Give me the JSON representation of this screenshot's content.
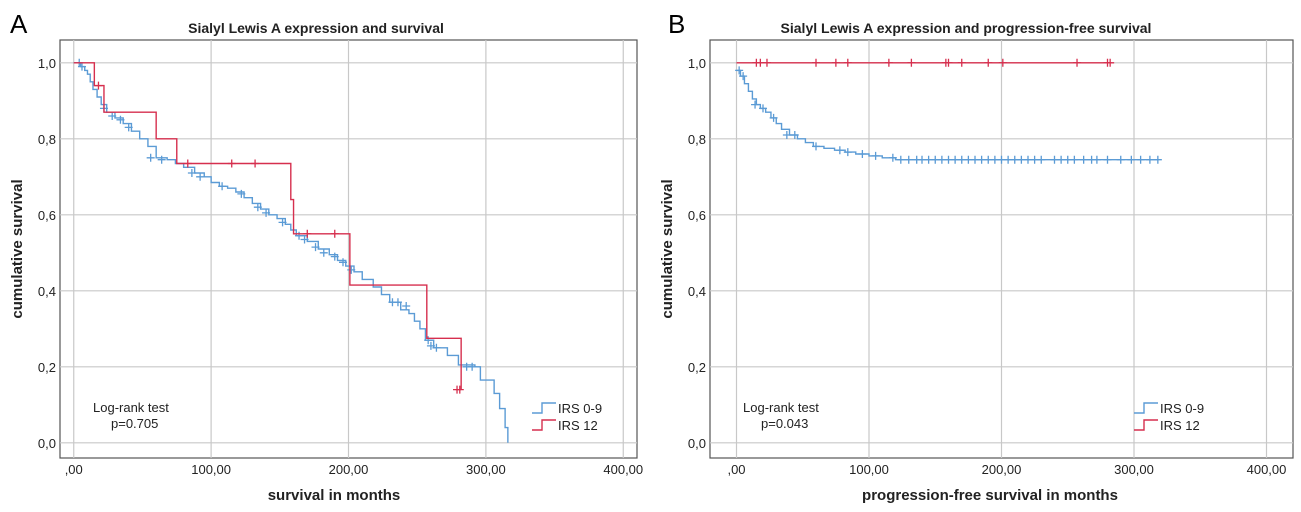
{
  "colors": {
    "irs_0_9": "#5b9bd5",
    "irs_12": "#d62f4e",
    "grid": "#c8c8c8"
  },
  "chart_data": [
    {
      "type": "line",
      "panel": "A",
      "title": "Sialyl Lewis A expression and survival",
      "xlabel": "survival in months",
      "ylabel": "cumulative survival",
      "xlim": [
        -10,
        410
      ],
      "ylim": [
        -0.04,
        1.06
      ],
      "x_ticks": [
        0,
        100,
        200,
        300,
        400
      ],
      "x_tick_labels": [
        ",00",
        "100,00",
        "200,00",
        "300,00",
        "400,00"
      ],
      "y_ticks": [
        0,
        0.2,
        0.4,
        0.6,
        0.8,
        1.0
      ],
      "y_tick_labels": [
        "0,0",
        "0,2",
        "0,4",
        "0,6",
        "0,8",
        "1,0"
      ],
      "grid": true,
      "annotation": [
        "Log-rank test",
        "p=0.705"
      ],
      "legend_position": "bottom-right",
      "series": [
        {
          "name": "IRS 0-9",
          "color_key": "irs_0_9",
          "steps": [
            [
              0,
              1.0
            ],
            [
              5,
              0.99
            ],
            [
              8,
              0.98
            ],
            [
              10,
              0.97
            ],
            [
              12,
              0.95
            ],
            [
              14,
              0.93
            ],
            [
              17,
              0.91
            ],
            [
              20,
              0.89
            ],
            [
              24,
              0.87
            ],
            [
              30,
              0.855
            ],
            [
              36,
              0.84
            ],
            [
              42,
              0.82
            ],
            [
              48,
              0.8
            ],
            [
              54,
              0.78
            ],
            [
              60,
              0.75
            ],
            [
              68,
              0.745
            ],
            [
              74,
              0.735
            ],
            [
              80,
              0.725
            ],
            [
              88,
              0.71
            ],
            [
              95,
              0.7
            ],
            [
              100,
              0.685
            ],
            [
              106,
              0.675
            ],
            [
              112,
              0.67
            ],
            [
              118,
              0.66
            ],
            [
              124,
              0.645
            ],
            [
              130,
              0.63
            ],
            [
              136,
              0.615
            ],
            [
              142,
              0.6
            ],
            [
              148,
              0.59
            ],
            [
              154,
              0.575
            ],
            [
              158,
              0.56
            ],
            [
              162,
              0.545
            ],
            [
              170,
              0.53
            ],
            [
              178,
              0.51
            ],
            [
              186,
              0.495
            ],
            [
              192,
              0.48
            ],
            [
              198,
              0.465
            ],
            [
              204,
              0.45
            ],
            [
              210,
              0.43
            ],
            [
              218,
              0.41
            ],
            [
              224,
              0.39
            ],
            [
              230,
              0.37
            ],
            [
              238,
              0.35
            ],
            [
              244,
              0.34
            ],
            [
              248,
              0.32
            ],
            [
              252,
              0.3
            ],
            [
              256,
              0.27
            ],
            [
              262,
              0.25
            ],
            [
              272,
              0.23
            ],
            [
              280,
              0.205
            ],
            [
              292,
              0.2
            ],
            [
              296,
              0.165
            ],
            [
              306,
              0.13
            ],
            [
              310,
              0.09
            ],
            [
              314,
              0.04
            ],
            [
              316,
              0.0
            ]
          ],
          "end_x": 316,
          "censored": [
            [
              4,
              1.0
            ],
            [
              6,
              0.99
            ],
            [
              22,
              0.88
            ],
            [
              28,
              0.86
            ],
            [
              34,
              0.85
            ],
            [
              40,
              0.83
            ],
            [
              56,
              0.75
            ],
            [
              64,
              0.745
            ],
            [
              86,
              0.71
            ],
            [
              92,
              0.7
            ],
            [
              108,
              0.675
            ],
            [
              122,
              0.655
            ],
            [
              134,
              0.62
            ],
            [
              140,
              0.605
            ],
            [
              152,
              0.58
            ],
            [
              164,
              0.545
            ],
            [
              168,
              0.535
            ],
            [
              176,
              0.515
            ],
            [
              182,
              0.5
            ],
            [
              190,
              0.49
            ],
            [
              196,
              0.475
            ],
            [
              202,
              0.455
            ],
            [
              232,
              0.37
            ],
            [
              236,
              0.37
            ],
            [
              242,
              0.36
            ],
            [
              258,
              0.27
            ],
            [
              260,
              0.255
            ],
            [
              264,
              0.25
            ],
            [
              286,
              0.2
            ],
            [
              290,
              0.2
            ]
          ]
        },
        {
          "name": "IRS 12",
          "color_key": "irs_12",
          "steps": [
            [
              0,
              1.0
            ],
            [
              15,
              0.94
            ],
            [
              22,
              0.87
            ],
            [
              60,
              0.8
            ],
            [
              75,
              0.735
            ],
            [
              158,
              0.64
            ],
            [
              160,
              0.55
            ],
            [
              201,
              0.415
            ],
            [
              257,
              0.275
            ],
            [
              282,
              0.14
            ]
          ],
          "end_x": 282,
          "censored": [
            [
              18,
              0.94
            ],
            [
              83,
              0.735
            ],
            [
              115,
              0.735
            ],
            [
              132,
              0.735
            ],
            [
              170,
              0.55
            ],
            [
              190,
              0.55
            ],
            [
              279,
              0.14
            ],
            [
              281,
              0.14
            ]
          ]
        }
      ]
    },
    {
      "type": "line",
      "panel": "B",
      "title": "Sialyl Lewis A expression and progression-free survival",
      "xlabel": "progression-free survival in months",
      "ylabel": "cumulative survival",
      "xlim": [
        -20,
        420
      ],
      "ylim": [
        -0.04,
        1.06
      ],
      "x_ticks": [
        0,
        100,
        200,
        300,
        400
      ],
      "x_tick_labels": [
        ",00",
        "100,00",
        "200,00",
        "300,00",
        "400,00"
      ],
      "y_ticks": [
        0,
        0.2,
        0.4,
        0.6,
        0.8,
        1.0
      ],
      "y_tick_labels": [
        "0,0",
        "0,2",
        "0,4",
        "0,6",
        "0,8",
        "1,0"
      ],
      "grid": true,
      "annotation": [
        "Log-rank test",
        "p=0.043"
      ],
      "legend_position": "bottom-right",
      "series": [
        {
          "name": "IRS 0-9",
          "color_key": "irs_0_9",
          "steps": [
            [
              0,
              0.98
            ],
            [
              3,
              0.965
            ],
            [
              6,
              0.945
            ],
            [
              9,
              0.925
            ],
            [
              12,
              0.905
            ],
            [
              15,
              0.89
            ],
            [
              18,
              0.88
            ],
            [
              22,
              0.87
            ],
            [
              26,
              0.855
            ],
            [
              30,
              0.84
            ],
            [
              34,
              0.825
            ],
            [
              40,
              0.81
            ],
            [
              46,
              0.8
            ],
            [
              52,
              0.79
            ],
            [
              58,
              0.78
            ],
            [
              66,
              0.775
            ],
            [
              74,
              0.77
            ],
            [
              82,
              0.765
            ],
            [
              90,
              0.76
            ],
            [
              100,
              0.755
            ],
            [
              110,
              0.75
            ],
            [
              120,
              0.745
            ]
          ],
          "end_x": 318,
          "censored": [
            [
              2,
              0.98
            ],
            [
              5,
              0.965
            ],
            [
              14,
              0.89
            ],
            [
              20,
              0.88
            ],
            [
              28,
              0.855
            ],
            [
              38,
              0.81
            ],
            [
              44,
              0.81
            ],
            [
              60,
              0.78
            ],
            [
              78,
              0.77
            ],
            [
              84,
              0.765
            ],
            [
              95,
              0.76
            ],
            [
              105,
              0.755
            ],
            [
              118,
              0.75
            ],
            [
              124,
              0.745
            ],
            [
              130,
              0.745
            ],
            [
              136,
              0.745
            ],
            [
              140,
              0.745
            ],
            [
              145,
              0.745
            ],
            [
              150,
              0.745
            ],
            [
              155,
              0.745
            ],
            [
              160,
              0.745
            ],
            [
              165,
              0.745
            ],
            [
              170,
              0.745
            ],
            [
              175,
              0.745
            ],
            [
              180,
              0.745
            ],
            [
              185,
              0.745
            ],
            [
              190,
              0.745
            ],
            [
              195,
              0.745
            ],
            [
              200,
              0.745
            ],
            [
              205,
              0.745
            ],
            [
              210,
              0.745
            ],
            [
              215,
              0.745
            ],
            [
              220,
              0.745
            ],
            [
              225,
              0.745
            ],
            [
              230,
              0.745
            ],
            [
              240,
              0.745
            ],
            [
              245,
              0.745
            ],
            [
              250,
              0.745
            ],
            [
              255,
              0.745
            ],
            [
              262,
              0.745
            ],
            [
              268,
              0.745
            ],
            [
              272,
              0.745
            ],
            [
              280,
              0.745
            ],
            [
              290,
              0.745
            ],
            [
              298,
              0.745
            ],
            [
              305,
              0.745
            ],
            [
              312,
              0.745
            ],
            [
              318,
              0.745
            ]
          ]
        },
        {
          "name": "IRS 12",
          "color_key": "irs_12",
          "steps": [
            [
              0,
              1.0
            ]
          ],
          "end_x": 282,
          "censored": [
            [
              15,
              1.0
            ],
            [
              18,
              1.0
            ],
            [
              23,
              1.0
            ],
            [
              60,
              1.0
            ],
            [
              75,
              1.0
            ],
            [
              84,
              1.0
            ],
            [
              115,
              1.0
            ],
            [
              132,
              1.0
            ],
            [
              158,
              1.0
            ],
            [
              160,
              1.0
            ],
            [
              170,
              1.0
            ],
            [
              190,
              1.0
            ],
            [
              201,
              1.0
            ],
            [
              257,
              1.0
            ],
            [
              280,
              1.0
            ],
            [
              282,
              1.0
            ]
          ]
        }
      ]
    }
  ]
}
